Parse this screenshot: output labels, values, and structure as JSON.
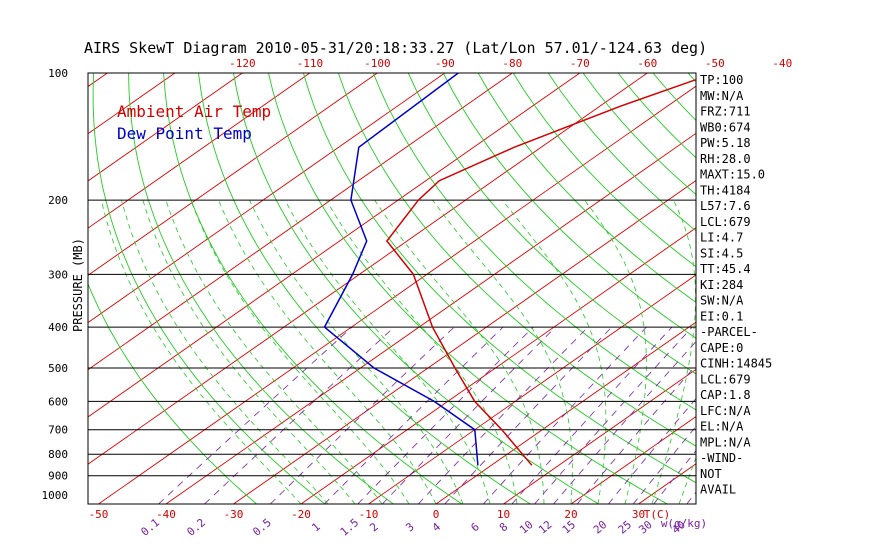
{
  "chart_data": {
    "type": "line",
    "title": "AIRS SkewT Diagram 2010-05-31/20:18:33.27 (Lat/Lon 57.01/-124.63 deg)",
    "ylabel": "PRESSURE (MB)",
    "xlabel": "T(C)",
    "mixing_label": "w(g/kg)",
    "pressure_ticks": [
      "100",
      "200",
      "300",
      "400",
      "500",
      "600",
      "700",
      "800",
      "900",
      "1000"
    ],
    "isobars": [
      200,
      300,
      400,
      500,
      600,
      700,
      800,
      900
    ],
    "bottom_temp_ticks": [
      "-50",
      "-40",
      "-30",
      "-20",
      "-10",
      "0",
      "10",
      "20",
      "30"
    ],
    "top_temp_ticks": [
      "-120",
      "-110",
      "-100",
      "-90",
      "-80",
      "-70",
      "-60",
      "-50",
      "-40"
    ],
    "mixing_ticks": [
      "0.1",
      "0.2",
      "0.5",
      "1",
      "1.5",
      "2",
      "3",
      "4",
      "6",
      "8",
      "10",
      "12",
      "15",
      "20",
      "25",
      "30",
      "40"
    ],
    "legend": [
      "Ambient Air Temp",
      "Dew Point Temp"
    ],
    "legend_position": "top-left",
    "series": [
      {
        "name": "Ambient Air Temp",
        "color": "#d40000",
        "points": [
          [
            100,
            -50
          ],
          [
            120,
            -57
          ],
          [
            150,
            -64
          ],
          [
            180,
            -68
          ],
          [
            200,
            -67
          ],
          [
            250,
            -63
          ],
          [
            300,
            -52
          ],
          [
            400,
            -38
          ],
          [
            500,
            -26
          ],
          [
            600,
            -16
          ],
          [
            700,
            -6
          ],
          [
            850,
            6
          ]
        ]
      },
      {
        "name": "Dew Point Temp",
        "color": "#0000cc",
        "points": [
          [
            100,
            -88
          ],
          [
            150,
            -87
          ],
          [
            200,
            -77
          ],
          [
            250,
            -66
          ],
          [
            300,
            -61
          ],
          [
            400,
            -54
          ],
          [
            500,
            -38
          ],
          [
            600,
            -22
          ],
          [
            700,
            -10
          ],
          [
            850,
            -2
          ]
        ]
      }
    ]
  },
  "indices": [
    "TP:100",
    "MW:N/A",
    "FRZ:711",
    "WB0:674",
    "PW:5.18",
    "RH:28.0",
    "MAXT:15.0",
    "TH:4184",
    "L57:7.6",
    "LCL:679",
    "LI:4.7",
    "SI:4.5",
    "TT:45.4",
    "KI:284",
    "SW:N/A",
    "EI:0.1",
    "-PARCEL-",
    "CAPE:0",
    "CINH:14845",
    "LCL:679",
    "CAP:1.8",
    "LFC:N/A",
    "EL:N/A",
    "MPL:N/A",
    "-WIND-",
    "NOT",
    "AVAIL"
  ]
}
